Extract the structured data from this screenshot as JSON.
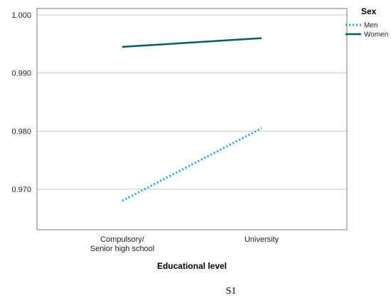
{
  "chart_data": {
    "type": "line",
    "categories": [
      "Compulsory/\nSenior high school",
      "University"
    ],
    "series": [
      {
        "name": "Men",
        "values": [
          0.968,
          0.9805
        ],
        "color": "#1ea6dc",
        "style": "dotted"
      },
      {
        "name": "Women",
        "values": [
          0.9945,
          0.996
        ],
        "color": "#005f60",
        "style": "solid"
      }
    ],
    "xlabel": "Educational level",
    "ylabel": "",
    "ylim": [
      0.963,
      1.0
    ],
    "yticks": [
      0.97,
      0.98,
      0.99,
      1.0
    ],
    "ytick_labels": [
      "0.970",
      "0.980",
      "0.990",
      "1.000"
    ],
    "grid": true,
    "legend": {
      "title": "Sex",
      "placement": "top-right"
    }
  },
  "caption": "S1"
}
